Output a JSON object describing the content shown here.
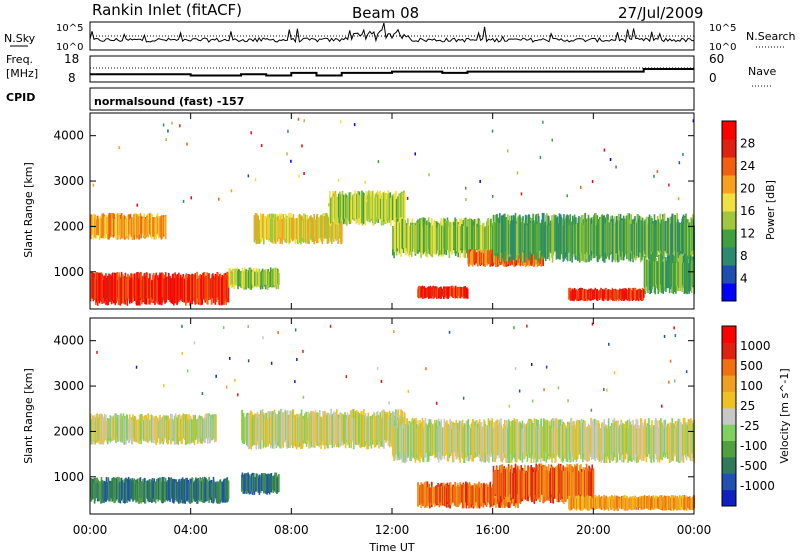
{
  "header": {
    "station": "Rankin Inlet (fitACF)",
    "beam": "Beam 08",
    "date": "27/Jul/2009"
  },
  "top_panels": {
    "nsky_label": "N.Sky",
    "nsky_scale_top": "10^5",
    "nsky_scale_bottom": "10^0",
    "nsearch_label": "N.Search",
    "nsearch_scale_top": "10^5",
    "nsearch_scale_bottom": "10^0",
    "freq_label_1": "Freq.",
    "freq_label_2": "[MHz]",
    "freq_ticks": [
      "18",
      "8"
    ],
    "nave_label": "Nave",
    "nave_ticks": [
      "60",
      "0"
    ],
    "cpid_label": "CPID",
    "cpid_text": "normalsound (fast) -157"
  },
  "colors": {
    "power_scale": [
      "#0000ff",
      "#1e4fb0",
      "#2e8a6e",
      "#40a040",
      "#a0c83c",
      "#f0e040",
      "#f8a020",
      "#f06010",
      "#e02010",
      "#ff0000"
    ],
    "velocity_scale": [
      "#1020c0",
      "#2050b0",
      "#2e7a5a",
      "#50a040",
      "#80d060",
      "#c8c8c8",
      "#f0c020",
      "#f0a020",
      "#f07010",
      "#e02010",
      "#ff0000"
    ]
  },
  "chart_data": [
    {
      "type": "line",
      "panel": "N.Sky / N.Search",
      "x_range": [
        "00:00",
        "24:00"
      ],
      "description_hidden": true
    },
    {
      "type": "line",
      "panel": "Freq / Nave",
      "ylim_freq": [
        8,
        18
      ],
      "ylim_nave": [
        0,
        60
      ],
      "x": [
        0,
        1,
        2,
        3,
        4,
        5,
        6,
        7,
        8,
        9,
        10,
        11,
        12,
        13,
        14,
        15,
        16,
        17,
        18,
        19,
        20,
        21,
        22,
        23,
        24
      ],
      "freq_mhz": [
        11,
        11,
        11,
        11,
        10.5,
        10.5,
        11,
        10.5,
        11.5,
        10.5,
        11.5,
        11.5,
        12,
        12,
        11.5,
        12,
        12,
        12,
        12,
        12,
        12,
        12,
        13,
        13,
        13
      ]
    },
    {
      "type": "heatmap",
      "title": "",
      "ylabel": "Slant Range [km]",
      "xlabel": "Time UT",
      "colorbar_label": "Power [dB]",
      "colorbar_ticks": [
        "4",
        "8",
        "12",
        "16",
        "20",
        "24",
        "28"
      ],
      "ylim": [
        180,
        4500
      ],
      "y_ticks": [
        "1000",
        "2000",
        "3000",
        "4000"
      ],
      "x_ticks": [
        "00:00",
        "04:00",
        "08:00",
        "12:00",
        "16:00",
        "20:00",
        "00:00"
      ],
      "bands": [
        {
          "t0": 0,
          "t1": 3,
          "r0": 1700,
          "r1": 2300,
          "level": 6
        },
        {
          "t0": 0,
          "t1": 5.5,
          "r0": 250,
          "r1": 1000,
          "level": 8
        },
        {
          "t0": 5.5,
          "t1": 7.5,
          "r0": 600,
          "r1": 1100,
          "level": 4
        },
        {
          "t0": 6.5,
          "t1": 10,
          "r0": 1600,
          "r1": 2300,
          "level": 5
        },
        {
          "t0": 9.5,
          "t1": 12.5,
          "r0": 2000,
          "r1": 2800,
          "level": 4
        },
        {
          "t0": 12,
          "t1": 16,
          "r0": 1300,
          "r1": 2200,
          "level": 4
        },
        {
          "t0": 13,
          "t1": 15,
          "r0": 400,
          "r1": 700,
          "level": 8
        },
        {
          "t0": 15,
          "t1": 18,
          "r0": 1100,
          "r1": 1500,
          "level": 7
        },
        {
          "t0": 16,
          "t1": 24,
          "r0": 1200,
          "r1": 2300,
          "level": 3
        },
        {
          "t0": 19,
          "t1": 22,
          "r0": 350,
          "r1": 650,
          "level": 8
        },
        {
          "t0": 22,
          "t1": 24,
          "r0": 500,
          "r1": 1400,
          "level": 3
        }
      ]
    },
    {
      "type": "heatmap",
      "title": "",
      "ylabel": "Slant Range [km]",
      "xlabel": "Time UT",
      "colorbar_label": "Velocity [m s^-1]",
      "colorbar_ticks": [
        "1000",
        "500",
        "100",
        "25",
        "-25",
        "-100",
        "-500",
        "-1000"
      ],
      "ylim": [
        180,
        4500
      ],
      "y_ticks": [
        "1000",
        "2000",
        "3000",
        "4000"
      ],
      "x_ticks": [
        "00:00",
        "04:00",
        "08:00",
        "12:00",
        "16:00",
        "20:00",
        "00:00"
      ],
      "bands": [
        {
          "t0": 0,
          "t1": 5,
          "r0": 1700,
          "r1": 2400,
          "level": 5
        },
        {
          "t0": 0,
          "t1": 5.5,
          "r0": 400,
          "r1": 1000,
          "level": 2
        },
        {
          "t0": 6,
          "t1": 7.5,
          "r0": 600,
          "r1": 1100,
          "level": 2
        },
        {
          "t0": 6,
          "t1": 12.5,
          "r0": 1600,
          "r1": 2500,
          "level": 5
        },
        {
          "t0": 12,
          "t1": 24,
          "r0": 1300,
          "r1": 2300,
          "level": 5
        },
        {
          "t0": 13,
          "t1": 17,
          "r0": 300,
          "r1": 900,
          "level": 8
        },
        {
          "t0": 16,
          "t1": 20,
          "r0": 400,
          "r1": 1300,
          "level": 8
        },
        {
          "t0": 19,
          "t1": 24,
          "r0": 250,
          "r1": 600,
          "level": 7
        }
      ]
    }
  ],
  "xlabel": "Time UT"
}
